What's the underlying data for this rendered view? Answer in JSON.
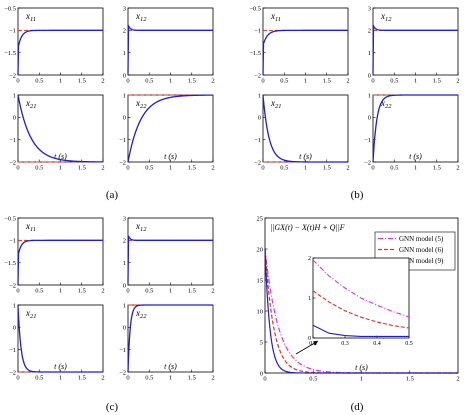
{
  "panel_labels": {
    "a": "(a)",
    "b": "(b)",
    "c": "(c)",
    "d": "(d)"
  },
  "colors": {
    "solution": "#1f1fcc",
    "reference": "#e0301e",
    "model5": "#e62ee6",
    "model6": "#e0301e",
    "model9": "#1f1fcc",
    "axis": "#000000"
  },
  "chart_data": [
    {
      "id": "a-x11",
      "type": "line",
      "label": "x11",
      "xlim": [
        0,
        2
      ],
      "ylim": [
        -2,
        -0.5
      ],
      "x_ticks": [
        "0",
        "0.5",
        "1",
        "1.5",
        "2"
      ],
      "y_ticks": [
        "-0.5",
        "-1",
        "-1.5",
        "-2"
      ],
      "reference": -1,
      "start": -2,
      "dip": -1.35,
      "tau": 0.08
    },
    {
      "id": "a-x12",
      "type": "line",
      "label": "x12",
      "xlim": [
        0,
        2
      ],
      "ylim": [
        0,
        3
      ],
      "x_ticks": [
        "0",
        "0.5",
        "1",
        "1.5",
        "2"
      ],
      "y_ticks": [
        "3",
        "2",
        "1",
        "0"
      ],
      "reference": 2,
      "start": 0.1,
      "dip": 2.2,
      "tau": 0.05
    },
    {
      "id": "a-x21",
      "type": "line",
      "label": "x21",
      "xlim": [
        0,
        2
      ],
      "ylim": [
        -2,
        1
      ],
      "x_ticks": [
        "0",
        "0.5",
        "1",
        "1.5",
        "2"
      ],
      "xlabel": "t (s)",
      "y_ticks": [
        "1",
        "0",
        "-1",
        "-2"
      ],
      "reference": -2,
      "start": 1,
      "tau": 0.3
    },
    {
      "id": "a-x22",
      "type": "line",
      "label": "x22",
      "xlim": [
        0,
        2
      ],
      "ylim": [
        -2,
        1
      ],
      "x_ticks": [
        "0",
        "0.5",
        "1",
        "1.5",
        "2"
      ],
      "xlabel": "t (s)",
      "y_ticks": [
        "1",
        "0",
        "-1",
        "-2"
      ],
      "reference": 1,
      "start": -2,
      "tau": 0.3
    },
    {
      "id": "b-x11",
      "type": "line",
      "label": "x11",
      "xlim": [
        0,
        2
      ],
      "ylim": [
        -2,
        -0.5
      ],
      "x_ticks": [
        "0",
        "0.5",
        "1",
        "1.5",
        "2"
      ],
      "y_ticks": [
        "-0.5",
        "-1",
        "-1.5",
        "-2"
      ],
      "reference": -1,
      "start": -2,
      "dip": -1.3,
      "tau": 0.1
    },
    {
      "id": "b-x12",
      "type": "line",
      "label": "x12",
      "xlim": [
        0,
        2
      ],
      "ylim": [
        0,
        3
      ],
      "x_ticks": [
        "0",
        "0.5",
        "1",
        "1.5",
        "2"
      ],
      "y_ticks": [
        "3",
        "2",
        "1",
        "0"
      ],
      "reference": 2,
      "start": 0.1,
      "dip": 2.2,
      "tau": 0.05
    },
    {
      "id": "b-x21",
      "type": "line",
      "label": "x21",
      "xlim": [
        0,
        2
      ],
      "ylim": [
        -2,
        1
      ],
      "x_ticks": [
        "0",
        "0.5",
        "1",
        "1.5",
        "2"
      ],
      "xlabel": "t (s)",
      "y_ticks": [
        "1",
        "0",
        "-1",
        "-2"
      ],
      "reference": -2,
      "start": 1,
      "tau": 0.14
    },
    {
      "id": "b-x22",
      "type": "line",
      "label": "x22",
      "xlim": [
        0,
        2
      ],
      "ylim": [
        -2,
        1
      ],
      "x_ticks": [
        "0",
        "0.5",
        "1",
        "1.5",
        "2"
      ],
      "xlabel": "t (s)",
      "y_ticks": [
        "1",
        "0",
        "-1",
        "-2"
      ],
      "reference": 1,
      "start": -2,
      "tau": 0.09
    },
    {
      "id": "c-x11",
      "type": "line",
      "label": "x11",
      "xlim": [
        0,
        2
      ],
      "ylim": [
        -2,
        -0.5
      ],
      "x_ticks": [
        "0",
        "0.5",
        "1",
        "1.5",
        "2"
      ],
      "y_ticks": [
        "-0.5",
        "-1",
        "-1.5",
        "-2"
      ],
      "reference": -1,
      "start": -2,
      "dip": -1.3,
      "tau": 0.07
    },
    {
      "id": "c-x12",
      "type": "line",
      "label": "x12",
      "xlim": [
        0,
        2
      ],
      "ylim": [
        0,
        3
      ],
      "x_ticks": [
        "0",
        "0.5",
        "1",
        "1.5",
        "2"
      ],
      "y_ticks": [
        "3",
        "2",
        "1",
        "0"
      ],
      "reference": 2,
      "start": 0.1,
      "dip": 2.2,
      "tau": 0.04
    },
    {
      "id": "c-x21",
      "type": "line",
      "label": "x21",
      "xlim": [
        0,
        2
      ],
      "ylim": [
        -2,
        1
      ],
      "x_ticks": [
        "0",
        "0.5",
        "1",
        "1.5",
        "2"
      ],
      "xlabel": "t (s)",
      "y_ticks": [
        "1",
        "0",
        "-1",
        "-2"
      ],
      "reference": -2,
      "start": 1,
      "tau": 0.07
    },
    {
      "id": "c-x22",
      "type": "line",
      "label": "x22",
      "xlim": [
        0,
        2
      ],
      "ylim": [
        -2,
        1
      ],
      "x_ticks": [
        "0",
        "0.5",
        "1",
        "1.5",
        "2"
      ],
      "xlabel": "t (s)",
      "y_ticks": [
        "1",
        "0",
        "-1",
        "-2"
      ],
      "reference": 1,
      "start": -2,
      "tau": 0.05
    },
    {
      "id": "d-main",
      "type": "line",
      "title": "||GX(t) − X(t)H + Q||F",
      "xlabel": "t (s)",
      "xlim": [
        0,
        2
      ],
      "ylim": [
        0,
        25
      ],
      "x_ticks": [
        "0",
        "0.5",
        "1",
        "1.5",
        "2"
      ],
      "y_ticks": [
        "25",
        "20",
        "15",
        "10",
        "5",
        "0"
      ],
      "legend": [
        "GNN model (5)",
        "GNN model (6)",
        "GNN model (9)"
      ],
      "legend_position": "top-right",
      "series": [
        {
          "name": "GNN model (5)",
          "style": "dash-dot",
          "start": 20,
          "tau": 0.14
        },
        {
          "name": "GNN model (6)",
          "style": "dashed",
          "start": 20,
          "tau": 0.09
        },
        {
          "name": "GNN model (9)",
          "style": "solid",
          "start": 20,
          "tau": 0.05
        }
      ]
    },
    {
      "id": "d-inset",
      "type": "line",
      "xlim": [
        0.2,
        0.5
      ],
      "ylim": [
        0,
        2
      ],
      "x_ticks": [
        "0.2",
        "0.3",
        "0.4",
        "0.5"
      ],
      "y_ticks": [
        "2",
        "1",
        "0"
      ],
      "series": [
        {
          "name": "GNN model (5)",
          "points": [
            [
              0.2,
              1.95
            ],
            [
              0.25,
              1.55
            ],
            [
              0.3,
              1.25
            ],
            [
              0.35,
              1.0
            ],
            [
              0.4,
              0.82
            ],
            [
              0.45,
              0.66
            ],
            [
              0.5,
              0.53
            ]
          ]
        },
        {
          "name": "GNN model (6)",
          "points": [
            [
              0.2,
              1.18
            ],
            [
              0.25,
              0.9
            ],
            [
              0.3,
              0.68
            ],
            [
              0.35,
              0.52
            ],
            [
              0.4,
              0.4
            ],
            [
              0.45,
              0.31
            ],
            [
              0.5,
              0.25
            ]
          ]
        },
        {
          "name": "GNN model (9)",
          "points": [
            [
              0.2,
              0.32
            ],
            [
              0.25,
              0.12
            ],
            [
              0.3,
              0.06
            ],
            [
              0.35,
              0.04
            ],
            [
              0.4,
              0.04
            ],
            [
              0.45,
              0.04
            ],
            [
              0.5,
              0.04
            ]
          ]
        }
      ]
    }
  ]
}
